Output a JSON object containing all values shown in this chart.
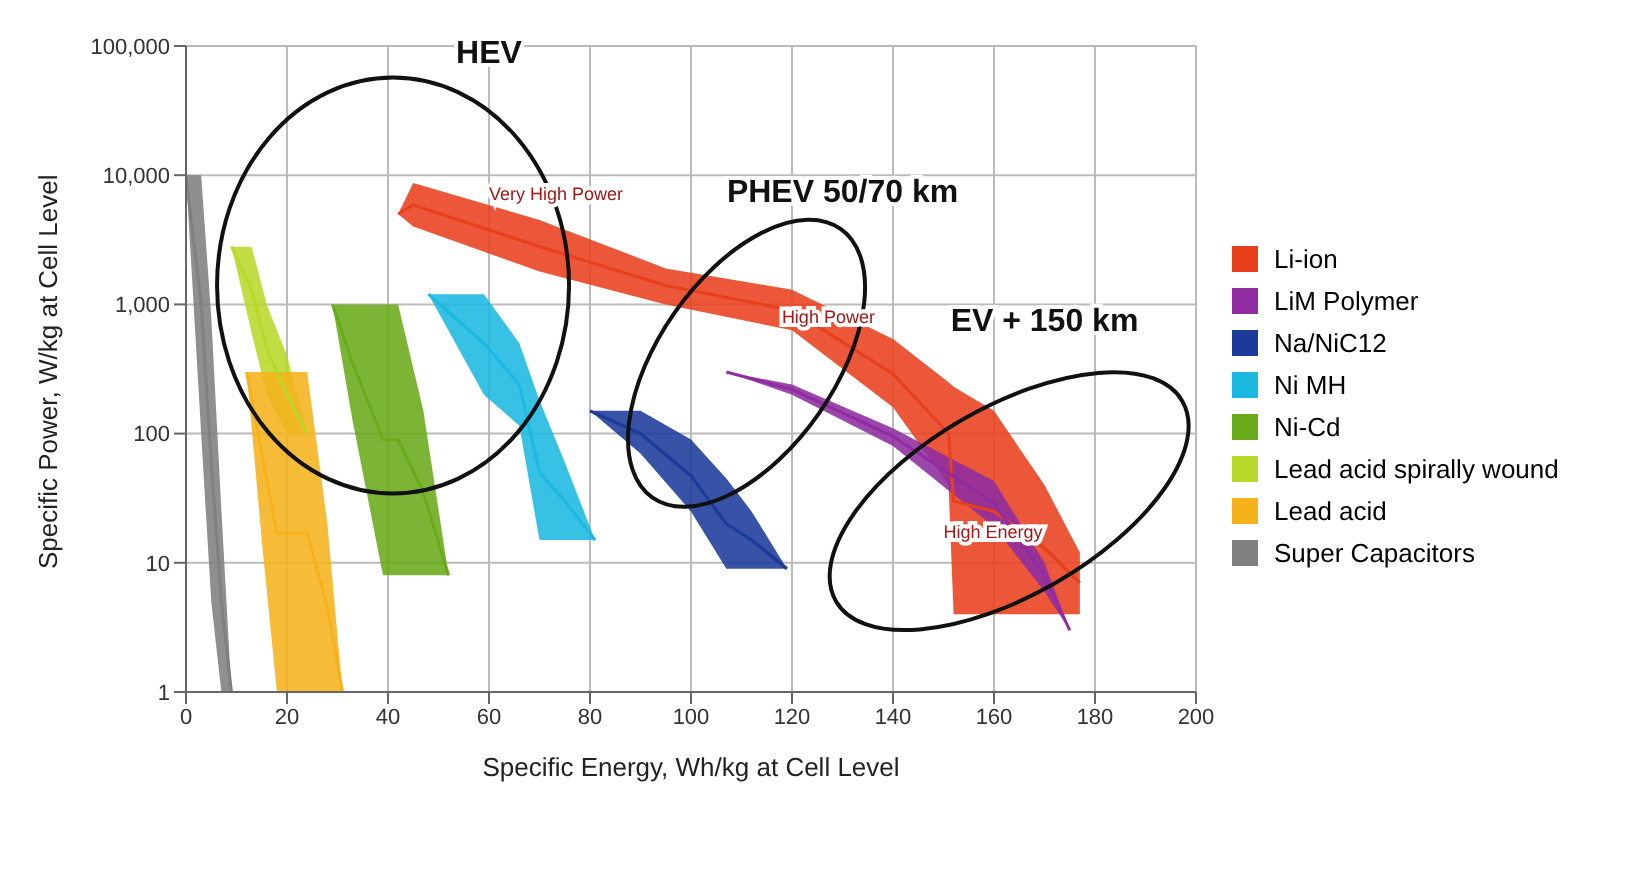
{
  "chart_data": {
    "type": "line",
    "xlabel": "Specific Energy, Wh/kg at Cell Level",
    "ylabel": "Specific Power, W/kg at Cell Level",
    "log": "y",
    "grid": true,
    "legend": "right",
    "xlim": [
      0,
      200
    ],
    "xticks": [
      0,
      20,
      40,
      60,
      80,
      100,
      120,
      140,
      160,
      180,
      200
    ],
    "ylim": [
      1,
      100000
    ],
    "yticks": [
      1,
      10,
      100,
      {
        "value": 1000,
        "label": "1,000"
      },
      {
        "value": 10000,
        "label": "10,000"
      },
      {
        "value": 100000,
        "label": "100,000"
      }
    ],
    "series": [
      {
        "name": "Li-ion",
        "color": "#e8401c",
        "x": [
          42,
          45,
          70,
          95,
          120,
          140,
          151,
          152,
          160,
          170,
          177
        ],
        "values": [
          5000,
          5900,
          2800,
          1400,
          900,
          290,
          100,
          30,
          25,
          13,
          7
        ],
        "upper": [
          5000,
          8700,
          4500,
          1900,
          1300,
          540,
          250,
          230,
          150,
          40,
          12
        ],
        "lower": [
          5000,
          4000,
          1800,
          1000,
          630,
          160,
          40,
          4,
          4,
          4,
          4
        ]
      },
      {
        "name": "LiM Polymer",
        "color": "#8e2ca0",
        "x": [
          107,
          120,
          140,
          160,
          170,
          175
        ],
        "values": [
          300,
          220,
          95,
          29,
          8,
          3
        ],
        "upper": [
          300,
          240,
          110,
          43,
          10,
          3
        ],
        "lower": [
          300,
          200,
          80,
          19,
          6,
          3
        ]
      },
      {
        "name": "Na/NiC12",
        "color": "#1b3a9a",
        "x": [
          80,
          90,
          100,
          107,
          112,
          119
        ],
        "values": [
          150,
          100,
          47,
          20,
          15,
          9
        ],
        "upper": [
          150,
          150,
          90,
          45,
          25,
          9
        ],
        "lower": [
          150,
          70,
          25,
          9,
          9,
          9
        ]
      },
      {
        "name": "Ni MH",
        "color": "#1bb8e0",
        "x": [
          48,
          59,
          66,
          70,
          75,
          81
        ],
        "values": [
          1200,
          500,
          240,
          50,
          30,
          15
        ],
        "upper": [
          1200,
          1200,
          500,
          180,
          60,
          15
        ],
        "lower": [
          1200,
          200,
          115,
          15,
          15,
          15
        ]
      },
      {
        "name": "Ni-Cd",
        "color": "#6aab1a",
        "x": [
          29,
          33,
          39,
          42,
          47,
          52
        ],
        "values": [
          1000,
          350,
          90,
          90,
          35,
          8
        ],
        "upper": [
          1000,
          1000,
          1000,
          1000,
          150,
          8
        ],
        "lower": [
          1000,
          125,
          8,
          8,
          8,
          8
        ]
      },
      {
        "name": "Lead acid spirally wound",
        "color": "#b8d82a",
        "x": [
          9,
          13,
          16,
          20,
          24
        ],
        "values": [
          2800,
          1300,
          450,
          200,
          100
        ],
        "upper": [
          2800,
          2800,
          1000,
          400,
          100
        ],
        "lower": [
          2800,
          600,
          200,
          100,
          100
        ]
      },
      {
        "name": "Lead acid",
        "color": "#f5b21b",
        "x": [
          12,
          15,
          18,
          24,
          28,
          31
        ],
        "values": [
          300,
          70,
          17,
          17,
          4.5,
          1
        ],
        "upper": [
          300,
          300,
          300,
          300,
          20,
          1
        ],
        "lower": [
          300,
          15,
          1,
          1,
          1,
          1
        ]
      },
      {
        "name": "Super Capacitors",
        "color": "#808080",
        "x": [
          0,
          3,
          5,
          7,
          9
        ],
        "values": [
          10000,
          1000,
          60,
          5,
          1
        ],
        "upper": [
          10000,
          10000,
          800,
          26,
          1
        ],
        "lower": [
          10000,
          100,
          5,
          1,
          1
        ]
      }
    ],
    "annotations": [
      "HEV",
      "PHEV 50/70 km",
      "EV + 150 km",
      {
        "text": "Very High Power",
        "x": 60,
        "y": 7000
      },
      {
        "text": "High Power",
        "x": 118,
        "y": 780
      },
      {
        "text": "High Energy",
        "x": 150,
        "y": 17
      }
    ]
  }
}
